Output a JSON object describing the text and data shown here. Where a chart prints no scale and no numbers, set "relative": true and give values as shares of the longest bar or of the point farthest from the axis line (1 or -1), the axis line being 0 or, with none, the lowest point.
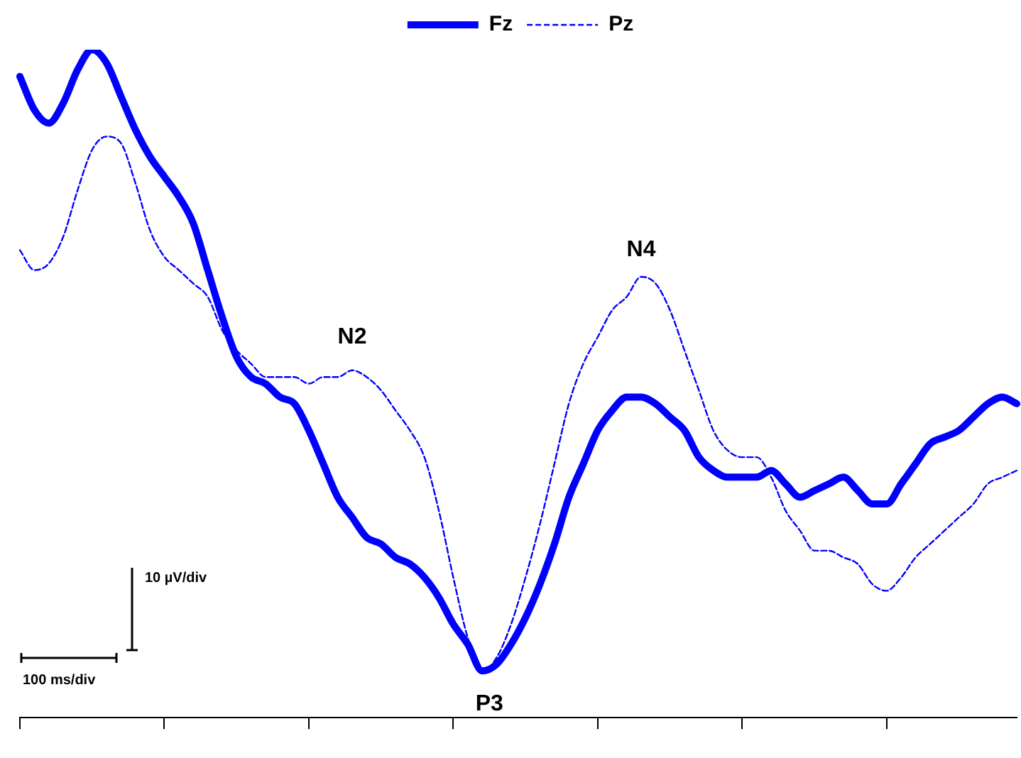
{
  "chart_data": {
    "type": "line",
    "relative": true,
    "legend": "top",
    "grid": false,
    "categories": [
      null,
      null,
      null,
      null,
      null,
      null,
      null,
      null,
      null,
      null,
      null,
      null,
      null,
      null,
      null,
      null,
      null,
      null,
      null,
      null,
      null,
      null,
      null,
      null,
      null,
      null,
      null,
      null,
      null,
      null,
      null,
      null,
      null,
      null,
      null,
      null,
      null,
      null,
      null,
      null,
      null,
      null,
      null,
      null,
      null,
      null,
      null,
      null,
      null,
      null,
      null,
      null,
      null,
      null,
      null,
      null,
      null,
      null,
      null,
      null,
      null,
      null,
      null,
      null,
      null,
      null,
      null,
      null,
      null,
      null
    ],
    "series": [
      {
        "name": "Fz",
        "color": "#0000ff",
        "line_style": "solid",
        "values": [
          0.96,
          0.91,
          0.89,
          0.92,
          0.97,
          1,
          0.98,
          0.93,
          0.88,
          0.84,
          0.81,
          0.78,
          0.74,
          0.67,
          0.6,
          0.54,
          0.51,
          0.5,
          0.48,
          0.47,
          0.43,
          0.38,
          0.33,
          0.3,
          0.27,
          0.26,
          0.24,
          0.23,
          0.21,
          0.18,
          0.14,
          0.11,
          0.07,
          0.08,
          0.11,
          0.15,
          0.2,
          0.26,
          0.33,
          0.38,
          0.43,
          0.46,
          0.48,
          0.48,
          0.47,
          0.45,
          0.43,
          0.39,
          0.37,
          0.36,
          0.36,
          0.36,
          0.37,
          0.35,
          0.33,
          0.34,
          0.35,
          0.36,
          0.34,
          0.32,
          0.32,
          0.35,
          0.38,
          0.41,
          0.42,
          0.43,
          0.45,
          0.47,
          0.48,
          0.47
        ]
      },
      {
        "name": "Pz",
        "color": "#0000ff",
        "line_style": "dashed",
        "values": [
          0.7,
          0.67,
          0.68,
          0.72,
          0.79,
          0.85,
          0.87,
          0.86,
          0.8,
          0.73,
          0.69,
          0.67,
          0.65,
          0.63,
          0.58,
          0.55,
          0.53,
          0.51,
          0.51,
          0.51,
          0.5,
          0.51,
          0.51,
          0.52,
          0.51,
          0.49,
          0.46,
          0.43,
          0.39,
          0.31,
          0.21,
          0.12,
          0.07,
          0.09,
          0.14,
          0.21,
          0.29,
          0.38,
          0.47,
          0.53,
          0.57,
          0.61,
          0.63,
          0.66,
          0.65,
          0.61,
          0.55,
          0.49,
          0.43,
          0.4,
          0.39,
          0.39,
          0.36,
          0.31,
          0.28,
          0.25,
          0.25,
          0.24,
          0.23,
          0.2,
          0.19,
          0.21,
          0.24,
          0.26,
          0.28,
          0.3,
          0.32,
          0.35,
          0.36,
          0.37
        ]
      }
    ],
    "annotations": [
      "N2",
      "N4",
      "P3",
      "10 µV/div",
      "100 ms/div"
    ]
  }
}
